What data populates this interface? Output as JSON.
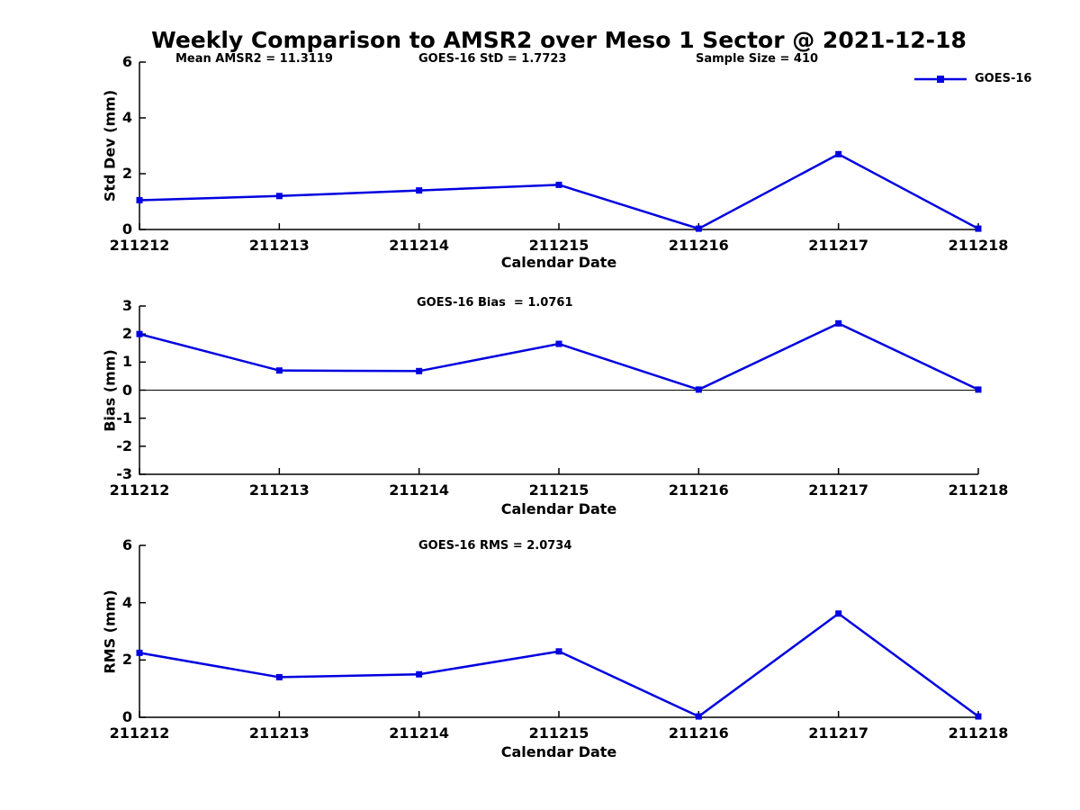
{
  "title": "Weekly Comparison to AMSR2 over Meso 1 Sector @ 2021-12-18",
  "colors": {
    "series": "#0000e0",
    "axis": "#000000",
    "background": "#ffffff"
  },
  "legend": {
    "label": "GOES-16",
    "marker": "square",
    "position": "top-right"
  },
  "chart_data": [
    {
      "type": "line",
      "name": "std-dev-panel",
      "annotations": [
        {
          "text": "Mean AMSR2 = 11.3119"
        },
        {
          "text": "GOES-16 StD = 1.7723"
        },
        {
          "text": "Sample Size = 410"
        }
      ],
      "x": [
        "211212",
        "211213",
        "211214",
        "211215",
        "211216",
        "211217",
        "211218"
      ],
      "series": [
        {
          "name": "GOES-16",
          "values": [
            1.05,
            1.2,
            1.4,
            1.6,
            0.03,
            2.7,
            0.03
          ]
        }
      ],
      "xlabel": "Calendar Date",
      "ylabel": "Std Dev (mm)",
      "ylim": [
        0,
        6
      ],
      "yticks": [
        0,
        2,
        4,
        6
      ],
      "zero_line": false,
      "grid": false
    },
    {
      "type": "line",
      "name": "bias-panel",
      "annotations": [
        {
          "text": "GOES-16 Bias  = 1.0761"
        }
      ],
      "x": [
        "211212",
        "211213",
        "211214",
        "211215",
        "211216",
        "211217",
        "211218"
      ],
      "series": [
        {
          "name": "GOES-16",
          "values": [
            2.0,
            0.7,
            0.68,
            1.65,
            0.02,
            2.38,
            0.02
          ]
        }
      ],
      "xlabel": "Calendar Date",
      "ylabel": "Bias (mm)",
      "ylim": [
        -3,
        3
      ],
      "yticks": [
        -3,
        -2,
        -1,
        0,
        1,
        2,
        3
      ],
      "zero_line": true,
      "grid": false
    },
    {
      "type": "line",
      "name": "rms-panel",
      "annotations": [
        {
          "text": "GOES-16 RMS = 2.0734"
        }
      ],
      "x": [
        "211212",
        "211213",
        "211214",
        "211215",
        "211216",
        "211217",
        "211218"
      ],
      "series": [
        {
          "name": "GOES-16",
          "values": [
            2.25,
            1.4,
            1.5,
            2.3,
            0.03,
            3.62,
            0.03
          ]
        }
      ],
      "xlabel": "Calendar Date",
      "ylabel": "RMS (mm)",
      "ylim": [
        0,
        6
      ],
      "yticks": [
        0,
        2,
        4,
        6
      ],
      "zero_line": false,
      "grid": false
    }
  ]
}
